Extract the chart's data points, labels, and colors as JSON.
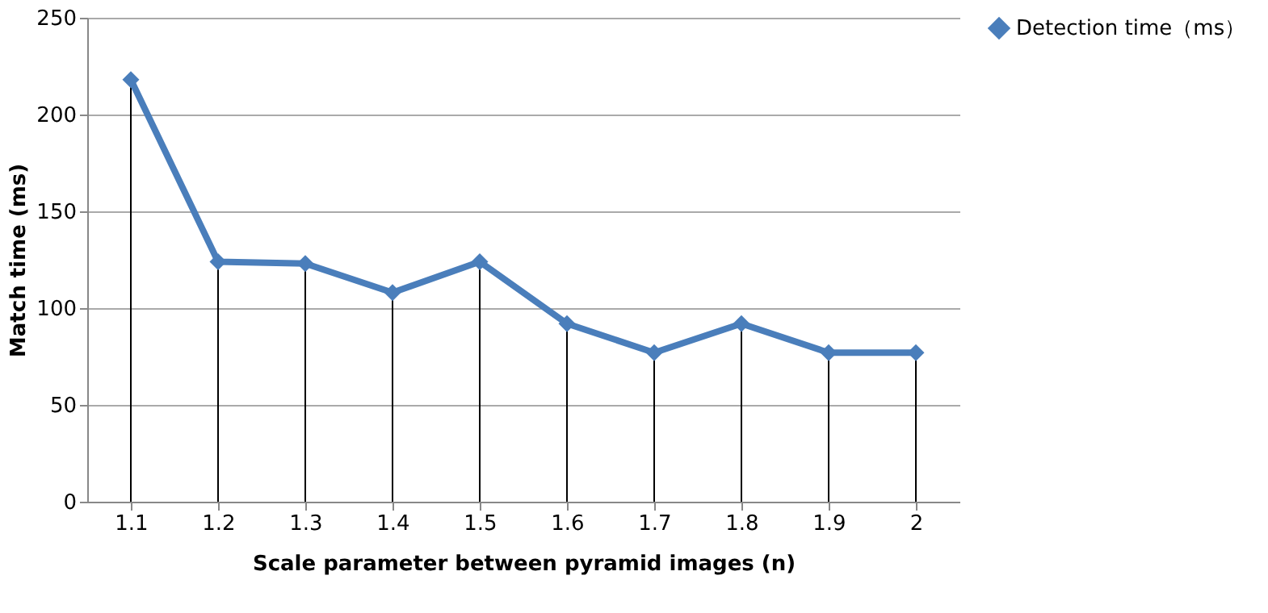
{
  "chart_data": {
    "type": "line",
    "xlabel": "Scale parameter between pyramid images (n)",
    "ylabel": "Match time (ms)",
    "categories": [
      "1.1",
      "1.2",
      "1.3",
      "1.4",
      "1.5",
      "1.6",
      "1.7",
      "1.8",
      "1.9",
      "2"
    ],
    "series": [
      {
        "name": "Detection time（ms）",
        "color": "#4a7ebb",
        "values": [
          218,
          124,
          123,
          108,
          124,
          92,
          77,
          92,
          77,
          77
        ],
        "errors": [
          [
            0,
            218
          ],
          [
            0,
            124
          ],
          [
            0,
            123
          ],
          [
            0,
            108
          ],
          [
            0,
            124
          ],
          [
            0,
            92
          ],
          [
            0,
            77
          ],
          [
            0,
            92
          ],
          [
            0,
            77
          ],
          [
            0,
            77
          ]
        ]
      }
    ],
    "ylim": [
      0,
      250
    ],
    "yticks": [
      0,
      50,
      100,
      150,
      200,
      250
    ],
    "grid": "y",
    "legend": "right",
    "marker": "diamond",
    "line_style": "solid"
  }
}
